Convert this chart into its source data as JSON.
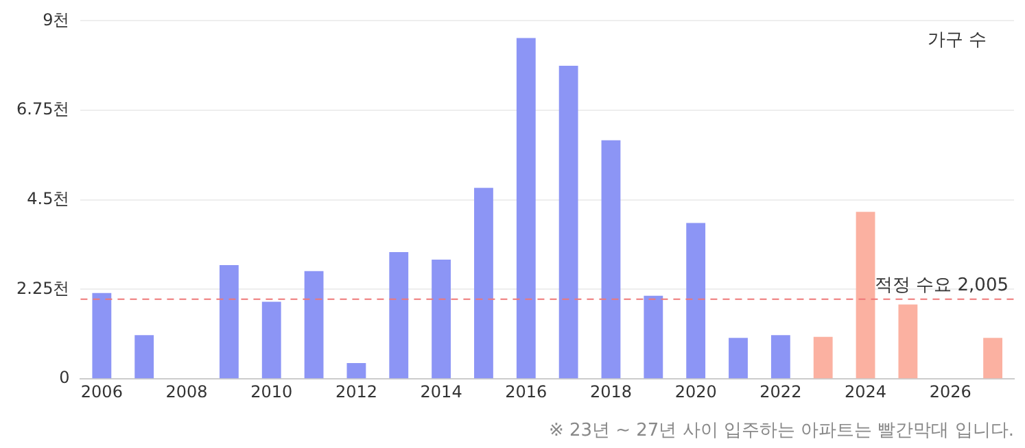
{
  "chart_data": {
    "type": "bar",
    "categories": [
      "2006",
      null,
      "2008",
      null,
      "2010",
      null,
      "2012",
      null,
      "2014",
      null,
      "2016",
      null,
      "2018",
      null,
      "2020",
      null,
      "2022",
      null,
      "2024",
      null,
      "2026",
      null
    ],
    "values": [
      2.16,
      1.1,
      null,
      2.86,
      1.94,
      2.71,
      0.4,
      3.19,
      3.0,
      4.8,
      8.57,
      7.87,
      6.0,
      2.09,
      3.92,
      1.03,
      1.1,
      1.06,
      4.2,
      1.87,
      null,
      1.03
    ],
    "colors": [
      "#8c95f5",
      "#8c95f5",
      "#8c95f5",
      "#8c95f5",
      "#8c95f5",
      "#8c95f5",
      "#8c95f5",
      "#8c95f5",
      "#8c95f5",
      "#8c95f5",
      "#8c95f5",
      "#8c95f5",
      "#8c95f5",
      "#8c95f5",
      "#8c95f5",
      "#8c95f5",
      "#8c95f5",
      "#fbb1a1",
      "#fbb1a1",
      "#fbb1a1",
      "#fbb1a1",
      "#fbb1a1"
    ],
    "ylim": [
      0,
      9
    ],
    "yticks": [
      0,
      {
        "value": 2.25,
        "label": "2.25천"
      },
      {
        "value": 4.5,
        "label": "4.5천"
      },
      {
        "value": 6.75,
        "label": "6.75천"
      },
      {
        "value": 9,
        "label": "9천"
      }
    ],
    "grid": "y",
    "ref_lines": [
      {
        "axis": "y",
        "value": 2.005,
        "label": "적정 수요 2,005",
        "color": "#ee7777",
        "line_style": "dashed"
      }
    ],
    "annotations": [
      "가구 수",
      "※ 23년 ~ 27년 사이 입주하는 아파트는 빨간막대 입니다."
    ]
  }
}
